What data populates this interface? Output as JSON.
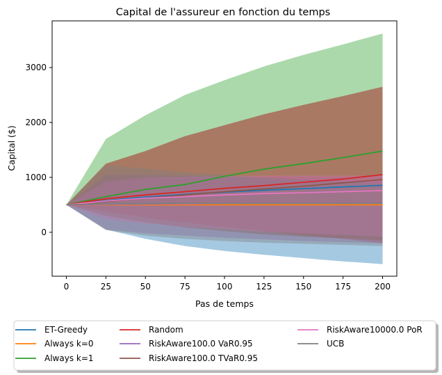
{
  "chart_data": {
    "type": "line",
    "title": "Capital de l'assureur en fonction du temps",
    "xlabel": "Pas de temps",
    "ylabel": "Capital ($)",
    "xlim": [
      -9,
      209
    ],
    "ylim": [
      -800,
      3850
    ],
    "x_ticks": [
      0,
      25,
      50,
      75,
      100,
      125,
      150,
      175,
      200
    ],
    "y_ticks": [
      0,
      1000,
      2000,
      3000
    ],
    "grid": false,
    "legend_position": "bottom",
    "x": [
      0,
      25,
      50,
      75,
      100,
      125,
      150,
      175,
      200
    ],
    "series": [
      {
        "name": "ET-Greedy",
        "color": "#1f77b4",
        "values": [
          500,
          580,
          640,
          690,
          730,
          765,
          795,
          825,
          855
        ],
        "band_upper": [
          500,
          920,
          980,
          1000,
          1010,
          1020,
          1020,
          1020,
          1020
        ],
        "band_lower": [
          500,
          50,
          -120,
          -250,
          -340,
          -410,
          -470,
          -530,
          -580
        ]
      },
      {
        "name": "Always k=0",
        "color": "#ff7f0e",
        "values": [
          500,
          500,
          500,
          500,
          500,
          500,
          500,
          500,
          500
        ],
        "band_upper": [
          500,
          500,
          500,
          500,
          500,
          500,
          500,
          500,
          500
        ],
        "band_lower": [
          500,
          500,
          500,
          500,
          500,
          500,
          500,
          500,
          500
        ]
      },
      {
        "name": "Always k=1",
        "color": "#2ca02c",
        "values": [
          500,
          650,
          780,
          870,
          1020,
          1150,
          1250,
          1360,
          1480
        ],
        "band_upper": [
          500,
          1700,
          2130,
          2500,
          2770,
          3020,
          3230,
          3420,
          3620
        ],
        "band_lower": [
          500,
          500,
          500,
          500,
          500,
          500,
          500,
          500,
          500
        ]
      },
      {
        "name": "Random",
        "color": "#d62728",
        "values": [
          500,
          610,
          680,
          740,
          800,
          850,
          910,
          970,
          1050
        ],
        "band_upper": [
          500,
          1250,
          1480,
          1750,
          1950,
          2150,
          2320,
          2480,
          2650
        ],
        "band_lower": [
          500,
          380,
          270,
          180,
          100,
          20,
          -60,
          -120,
          -200
        ]
      },
      {
        "name": "RiskAware100.0 VaR0.95",
        "color": "#9467bd",
        "values": [
          500,
          510,
          515,
          520,
          525,
          528,
          530,
          533,
          535
        ],
        "band_upper": [
          500,
          1050,
          1040,
          1030,
          1010,
          990,
          970,
          950,
          930
        ],
        "band_lower": [
          500,
          50,
          -20,
          -60,
          -100,
          -130,
          -160,
          -180,
          -200
        ]
      },
      {
        "name": "RiskAware100.0 TVaR0.95",
        "color": "#8c564b",
        "values": [
          500,
          560,
          620,
          680,
          740,
          790,
          840,
          900,
          960
        ],
        "band_upper": [
          500,
          1250,
          1480,
          1750,
          1950,
          2150,
          2320,
          2480,
          2650
        ],
        "band_lower": [
          500,
          300,
          180,
          90,
          20,
          -40,
          -80,
          -110,
          -150
        ]
      },
      {
        "name": "RiskAware10000.0 PoR",
        "color": "#e377c2",
        "values": [
          500,
          570,
          620,
          650,
          680,
          705,
          720,
          740,
          760
        ],
        "band_upper": [
          500,
          920,
          990,
          1010,
          1020,
          1030,
          1030,
          1030,
          1030
        ],
        "band_lower": [
          500,
          230,
          160,
          100,
          50,
          10,
          -20,
          -50,
          -80
        ]
      },
      {
        "name": "UCB",
        "color": "#7f7f7f",
        "values": [
          500,
          520,
          525,
          530,
          530,
          530,
          530,
          530,
          530
        ],
        "band_upper": [
          500,
          1220,
          1160,
          1090,
          1040,
          990,
          960,
          920,
          890
        ],
        "band_lower": [
          500,
          40,
          -60,
          -120,
          -160,
          -190,
          -210,
          -230,
          -250
        ]
      }
    ]
  }
}
